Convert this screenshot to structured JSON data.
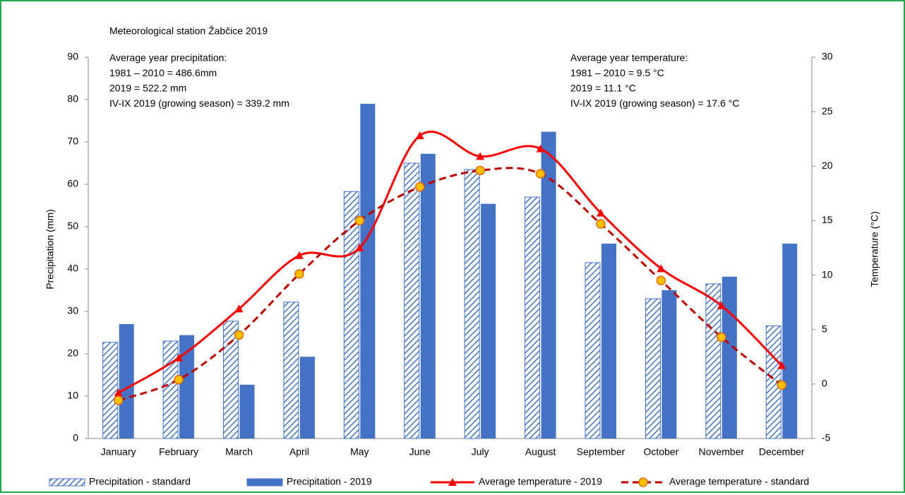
{
  "chart_data": {
    "type": "bar_line",
    "title": "Meteorological station Žabčice 2019",
    "annotations": [
      [
        "Average year precipitation:",
        "1981 – 2010 = 486.6mm",
        "2019 =  522.2 mm",
        "IV-IX 2019 (growing season) = 339.2 mm"
      ],
      [
        "Average year temperature:",
        "1981 – 2010 = 9.5 °C",
        "2019 = 11.1 °C",
        "IV-IX 2019 (growing season) = 17.6 °C"
      ]
    ],
    "y_label": "Precipitation (mm)",
    "y2_label": "Temperature (°C)",
    "categories": [
      "January",
      "February",
      "March",
      "April",
      "May",
      "June",
      "July",
      "August",
      "September",
      "October",
      "November",
      "December"
    ],
    "series": [
      {
        "name": "Precipitation - standard",
        "kind": "bar",
        "pattern": "hatched",
        "color": "#4472c4",
        "values": [
          22.7,
          23,
          27.7,
          32.2,
          58.3,
          65,
          63.5,
          57,
          41.5,
          33,
          36.5,
          26.6
        ]
      },
      {
        "name": "Precipitation - 2019",
        "kind": "bar",
        "color": "#4472c4",
        "values": [
          27,
          24.4,
          12.7,
          19.3,
          79,
          67.2,
          55.4,
          72.4,
          46,
          35,
          38.2,
          46
        ]
      },
      {
        "name": "Average temperature - 2019",
        "kind": "line",
        "axis": "y2",
        "color": "#ff0000",
        "marker": "triangle",
        "values": [
          -0.8,
          2.4,
          6.9,
          11.8,
          12.5,
          22.8,
          20.9,
          21.6,
          15.7,
          10.6,
          7.2,
          1.7
        ]
      },
      {
        "name": "Average temperature - standard",
        "kind": "line",
        "axis": "y2",
        "color": "#c00000",
        "dashed": true,
        "marker": "circle",
        "marker_color": "#ffc000",
        "values": [
          -1.5,
          0.4,
          4.5,
          10.1,
          15,
          18.1,
          19.6,
          19.3,
          14.7,
          9.5,
          4.3,
          -0.1
        ]
      }
    ],
    "ylim": [
      0,
      90
    ],
    "yticks": [
      0,
      10,
      20,
      30,
      40,
      50,
      60,
      70,
      80,
      90
    ],
    "y2lim": [
      -5,
      30
    ],
    "y2ticks": [
      -5,
      0,
      5,
      10,
      15,
      20,
      25,
      30
    ],
    "legend": "bottom"
  }
}
